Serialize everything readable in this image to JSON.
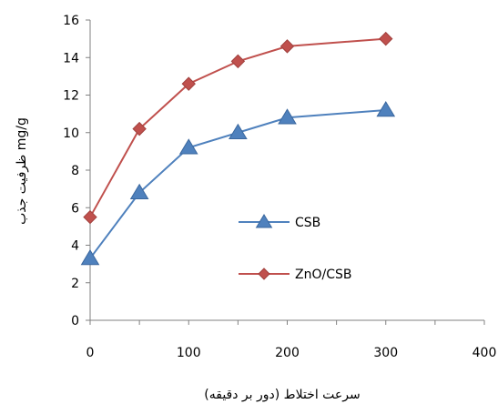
{
  "chart_data": {
    "type": "line",
    "title": "",
    "xlabel": "سرعت اختلاط (دور بر دقیقه)",
    "ylabel": "ظرفیت جذب mg/g",
    "xlim": [
      0,
      400
    ],
    "ylim": [
      0,
      16
    ],
    "xticks": [
      "0",
      "100",
      "200",
      "300",
      "400"
    ],
    "yticks": [
      "0",
      "2",
      "4",
      "6",
      "8",
      "10",
      "12",
      "14",
      "16"
    ],
    "grid": false,
    "legend_position": "center-right",
    "x": [
      0,
      50,
      100,
      150,
      200,
      300
    ],
    "series": [
      {
        "name": "CSB",
        "color": "#4F81BD",
        "marker": "triangle",
        "values": [
          3.3,
          6.8,
          9.2,
          10.0,
          10.8,
          11.2
        ]
      },
      {
        "name": "ZnO/CSB",
        "color": "#C0504D",
        "marker": "diamond",
        "values": [
          5.5,
          10.2,
          12.6,
          13.8,
          14.6,
          15.0
        ]
      }
    ]
  }
}
